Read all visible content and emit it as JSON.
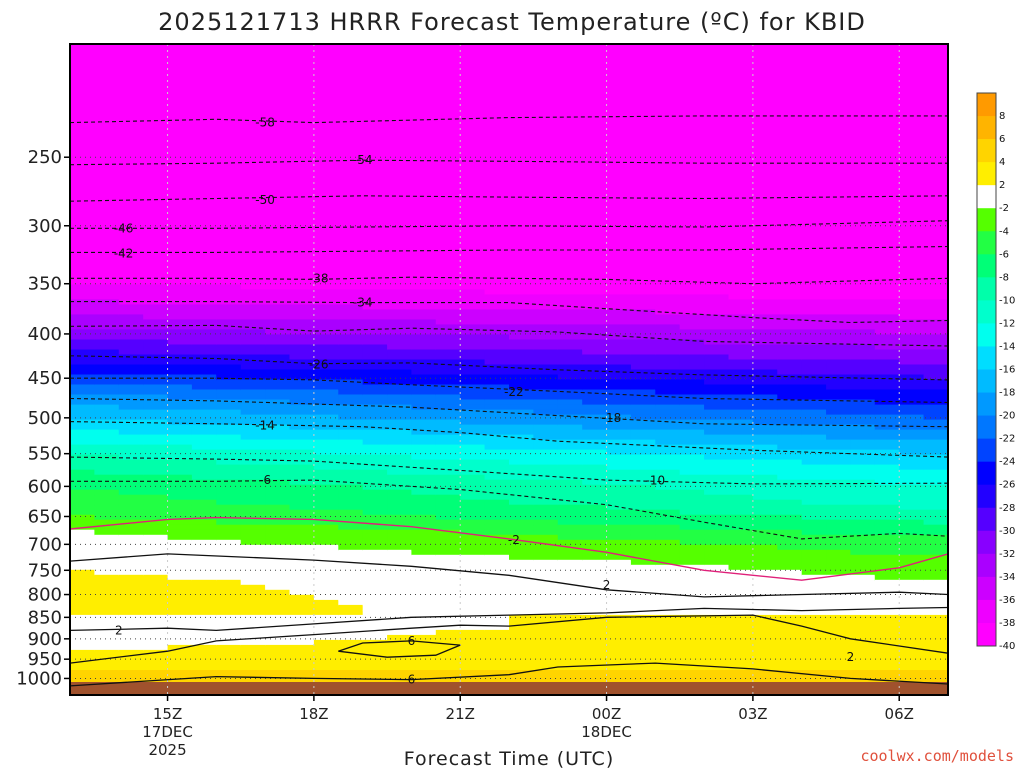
{
  "chart_data": {
    "type": "heatmap",
    "title": "2025121713 HRRR Forecast Temperature (ºC) for KBID",
    "xlabel": "Forecast Time (UTC)",
    "ylabel": "",
    "credit": "coolwx.com/models",
    "y_scale": "log-pressure",
    "y_axis_reversed": true,
    "ylim_hpa": [
      1045,
      185
    ],
    "y_ticks_hpa": [
      250,
      300,
      350,
      400,
      450,
      500,
      550,
      600,
      650,
      700,
      750,
      800,
      850,
      900,
      950,
      1000
    ],
    "x_range_hours": [
      13,
      31
    ],
    "x_ticks": [
      {
        "hour": 15,
        "lines": [
          "15Z",
          "17DEC",
          "2025"
        ]
      },
      {
        "hour": 18,
        "lines": [
          "18Z"
        ]
      },
      {
        "hour": 21,
        "lines": [
          "21Z"
        ]
      },
      {
        "hour": 24,
        "lines": [
          "00Z",
          "18DEC"
        ]
      },
      {
        "hour": 27,
        "lines": [
          "03Z"
        ]
      },
      {
        "hour": 30,
        "lines": [
          "06Z"
        ]
      }
    ],
    "grid": "dotted",
    "colorbar": {
      "ticks": [
        "8",
        "6",
        "4",
        "2",
        "-2",
        "-4",
        "-6",
        "-8",
        "-10",
        "-12",
        "-14",
        "-16",
        "-18",
        "-20",
        "-22",
        "-24",
        "-26",
        "-28",
        "-30",
        "-32",
        "-34",
        "-36",
        "-38",
        "-40"
      ],
      "colors": [
        "#ff9a00",
        "#ffb400",
        "#ffd400",
        "#ffee00",
        "#ffffff",
        "#55ff00",
        "#22ff44",
        "#00ff77",
        "#00ffaa",
        "#00ffcc",
        "#00ffee",
        "#00ddff",
        "#00bbff",
        "#0099ff",
        "#0077ff",
        "#0044ff",
        "#0000ff",
        "#2200ff",
        "#5500ff",
        "#8800ff",
        "#aa00ff",
        "#cc00ff",
        "#ee00ff",
        "#ff00ff"
      ]
    },
    "temperature_profile_start": {
      "pressure_hpa": [
        1000,
        975,
        950,
        925,
        900,
        875,
        850,
        825,
        800,
        775,
        750,
        725,
        700,
        675,
        650,
        625,
        600,
        575,
        550,
        525,
        500,
        475,
        450,
        425,
        400,
        375,
        350,
        325,
        300,
        275,
        250,
        225,
        200
      ],
      "temp_c": [
        6,
        4,
        3,
        2,
        1,
        1,
        2,
        3,
        3,
        3,
        2,
        0,
        -1,
        -2,
        -4,
        -5,
        -6,
        -8,
        -10,
        -13,
        -16,
        -19,
        -23,
        -27,
        -31,
        -35,
        -38,
        -42,
        -46,
        -50,
        -54,
        -58,
        -60
      ]
    },
    "temperature_profile_end": {
      "pressure_hpa": [
        1000,
        975,
        950,
        925,
        900,
        875,
        850,
        825,
        800,
        775,
        750,
        725,
        700,
        675,
        650,
        625,
        600,
        575,
        550,
        525,
        500,
        475,
        450,
        425,
        400,
        375,
        350,
        325,
        300,
        275,
        250,
        225,
        200
      ],
      "temp_c": [
        5,
        4,
        2,
        3,
        4,
        3,
        2,
        0,
        -1,
        -2,
        -3,
        -4,
        -5,
        -7,
        -9,
        -11,
        -12,
        -14,
        -16,
        -19,
        -22,
        -25,
        -28,
        -31,
        -34,
        -37,
        -40,
        -44,
        -47,
        -51,
        -55,
        -59,
        -60
      ]
    },
    "contours": [
      {
        "label": "-58",
        "points": [
          [
            13,
            228
          ],
          [
            16,
            226
          ],
          [
            18,
            228
          ],
          [
            22,
            225
          ],
          [
            26,
            224
          ],
          [
            31,
            224
          ]
        ],
        "label_at": [
          17.0,
          228
        ]
      },
      {
        "label": "-54",
        "points": [
          [
            13,
            255
          ],
          [
            16,
            254
          ],
          [
            19,
            252
          ],
          [
            23,
            253
          ],
          [
            26,
            254
          ],
          [
            31,
            254
          ]
        ],
        "label_at": [
          19.0,
          252
        ]
      },
      {
        "label": "-50",
        "points": [
          [
            13,
            281
          ],
          [
            16,
            279
          ],
          [
            19,
            277
          ],
          [
            22,
            278
          ],
          [
            26,
            279
          ],
          [
            31,
            277
          ]
        ],
        "label_at": [
          17.0,
          280
        ]
      },
      {
        "label": "-46",
        "points": [
          [
            13,
            302
          ],
          [
            16,
            302
          ],
          [
            19,
            301
          ],
          [
            22,
            300
          ],
          [
            26,
            301
          ],
          [
            31,
            296
          ]
        ],
        "label_at": [
          14.1,
          302
        ]
      },
      {
        "label": "-42",
        "points": [
          [
            13,
            322
          ],
          [
            16,
            322
          ],
          [
            19,
            321
          ],
          [
            22,
            320
          ],
          [
            26,
            320
          ],
          [
            31,
            317
          ]
        ],
        "label_at": [
          14.1,
          323
        ]
      },
      {
        "label": "-38",
        "points": [
          [
            13,
            345
          ],
          [
            16,
            345
          ],
          [
            18,
            346
          ],
          [
            20,
            344
          ],
          [
            24,
            346
          ],
          [
            27,
            350
          ],
          [
            31,
            345
          ]
        ],
        "label_at": [
          18.1,
          345
        ]
      },
      {
        "label": "-34",
        "points": [
          [
            13,
            367
          ],
          [
            16,
            367
          ],
          [
            19,
            368
          ],
          [
            22,
            368
          ],
          [
            24,
            374
          ],
          [
            27,
            383
          ],
          [
            29,
            388
          ],
          [
            31,
            386
          ]
        ],
        "label_at": [
          19.0,
          368
        ]
      },
      {
        "label": "-30",
        "points": [
          [
            13,
            392
          ],
          [
            16,
            391
          ],
          [
            18,
            397
          ],
          [
            20,
            394
          ],
          [
            23,
            398
          ],
          [
            26,
            408
          ],
          [
            31,
            413
          ]
        ],
        "label_at": null
      },
      {
        "label": "-26",
        "points": [
          [
            13,
            424
          ],
          [
            16,
            427
          ],
          [
            18,
            433
          ],
          [
            20,
            432
          ],
          [
            23,
            440
          ],
          [
            26,
            446
          ],
          [
            31,
            452
          ]
        ],
        "label_at": [
          18.1,
          434
        ]
      },
      {
        "label": "-22",
        "points": [
          [
            13,
            450
          ],
          [
            16,
            450
          ],
          [
            18,
            452
          ],
          [
            20,
            458
          ],
          [
            23,
            466
          ],
          [
            26,
            475
          ],
          [
            31,
            480
          ]
        ],
        "label_at": [
          22.1,
          467
        ]
      },
      {
        "label": "-18",
        "points": [
          [
            13,
            475
          ],
          [
            16,
            478
          ],
          [
            18,
            482
          ],
          [
            20,
            486
          ],
          [
            23,
            497
          ],
          [
            26,
            508
          ],
          [
            31,
            512
          ]
        ],
        "label_at": [
          24.1,
          500
        ]
      },
      {
        "label": "-14",
        "points": [
          [
            13,
            505
          ],
          [
            16,
            508
          ],
          [
            19,
            512
          ],
          [
            21,
            520
          ],
          [
            23,
            532
          ],
          [
            27,
            545
          ],
          [
            31,
            555
          ]
        ],
        "label_at": [
          17.0,
          510
        ]
      },
      {
        "label": "-10",
        "points": [
          [
            13,
            555
          ],
          [
            16,
            558
          ],
          [
            18,
            561
          ],
          [
            21,
            575
          ],
          [
            24,
            590
          ],
          [
            27,
            596
          ],
          [
            31,
            595
          ]
        ],
        "label_at": [
          25.0,
          591
        ]
      },
      {
        "label": "-6",
        "points": [
          [
            13,
            592
          ],
          [
            16,
            592
          ],
          [
            18,
            590
          ],
          [
            21,
            605
          ],
          [
            24,
            630
          ],
          [
            26,
            660
          ],
          [
            28,
            690
          ],
          [
            30,
            680
          ],
          [
            31,
            685
          ]
        ],
        "label_at": [
          17.0,
          590
        ]
      },
      {
        "label": "-2",
        "points": [
          [
            13,
            672
          ],
          [
            15,
            655
          ],
          [
            16,
            652
          ],
          [
            18,
            655
          ],
          [
            20,
            668
          ],
          [
            22,
            690
          ],
          [
            24,
            715
          ],
          [
            26,
            750
          ],
          [
            28,
            770
          ],
          [
            30,
            745
          ],
          [
            31,
            718
          ]
        ],
        "label_at": [
          22.1,
          692
        ]
      },
      {
        "label": "2",
        "points": [
          [
            13,
            732
          ],
          [
            15,
            718
          ],
          [
            18,
            730
          ],
          [
            20,
            742
          ],
          [
            22,
            760
          ],
          [
            24,
            790
          ],
          [
            26,
            805
          ],
          [
            28,
            800
          ],
          [
            30,
            795
          ],
          [
            31,
            800
          ]
        ],
        "label_at": [
          24.0,
          780
        ]
      },
      {
        "label": "2",
        "points": [
          [
            13,
            880
          ],
          [
            15,
            875
          ],
          [
            16,
            880
          ],
          [
            18,
            865
          ],
          [
            20,
            850
          ],
          [
            22,
            845
          ],
          [
            24,
            840
          ],
          [
            26,
            830
          ],
          [
            28,
            835
          ],
          [
            30,
            830
          ],
          [
            31,
            828
          ]
        ],
        "label_at": [
          14.0,
          880
        ]
      },
      {
        "label": "2",
        "points": [
          [
            13,
            960
          ],
          [
            15,
            930
          ],
          [
            16,
            905
          ],
          [
            18,
            890
          ],
          [
            20,
            875
          ],
          [
            21,
            868
          ],
          [
            22,
            870
          ],
          [
            24,
            850
          ],
          [
            27,
            845
          ],
          [
            28,
            870
          ],
          [
            29,
            900
          ],
          [
            31,
            935
          ]
        ],
        "label_at": [
          29.0,
          945
        ]
      },
      {
        "label": "6",
        "points": [
          [
            18.5,
            930
          ],
          [
            19,
            910
          ],
          [
            20,
            905
          ],
          [
            21,
            915
          ],
          [
            20.5,
            940
          ],
          [
            19.5,
            945
          ],
          [
            18.5,
            930
          ]
        ],
        "label_at": [
          20.0,
          905
        ]
      },
      {
        "label": "6",
        "points": [
          [
            13,
            1020
          ],
          [
            16,
            995
          ],
          [
            18,
            1000
          ],
          [
            20,
            1003
          ],
          [
            22,
            990
          ],
          [
            23,
            970
          ],
          [
            25,
            960
          ],
          [
            27,
            975
          ],
          [
            29,
            1000
          ],
          [
            31,
            1015
          ]
        ],
        "label_at": [
          20.0,
          1003
        ]
      }
    ]
  }
}
